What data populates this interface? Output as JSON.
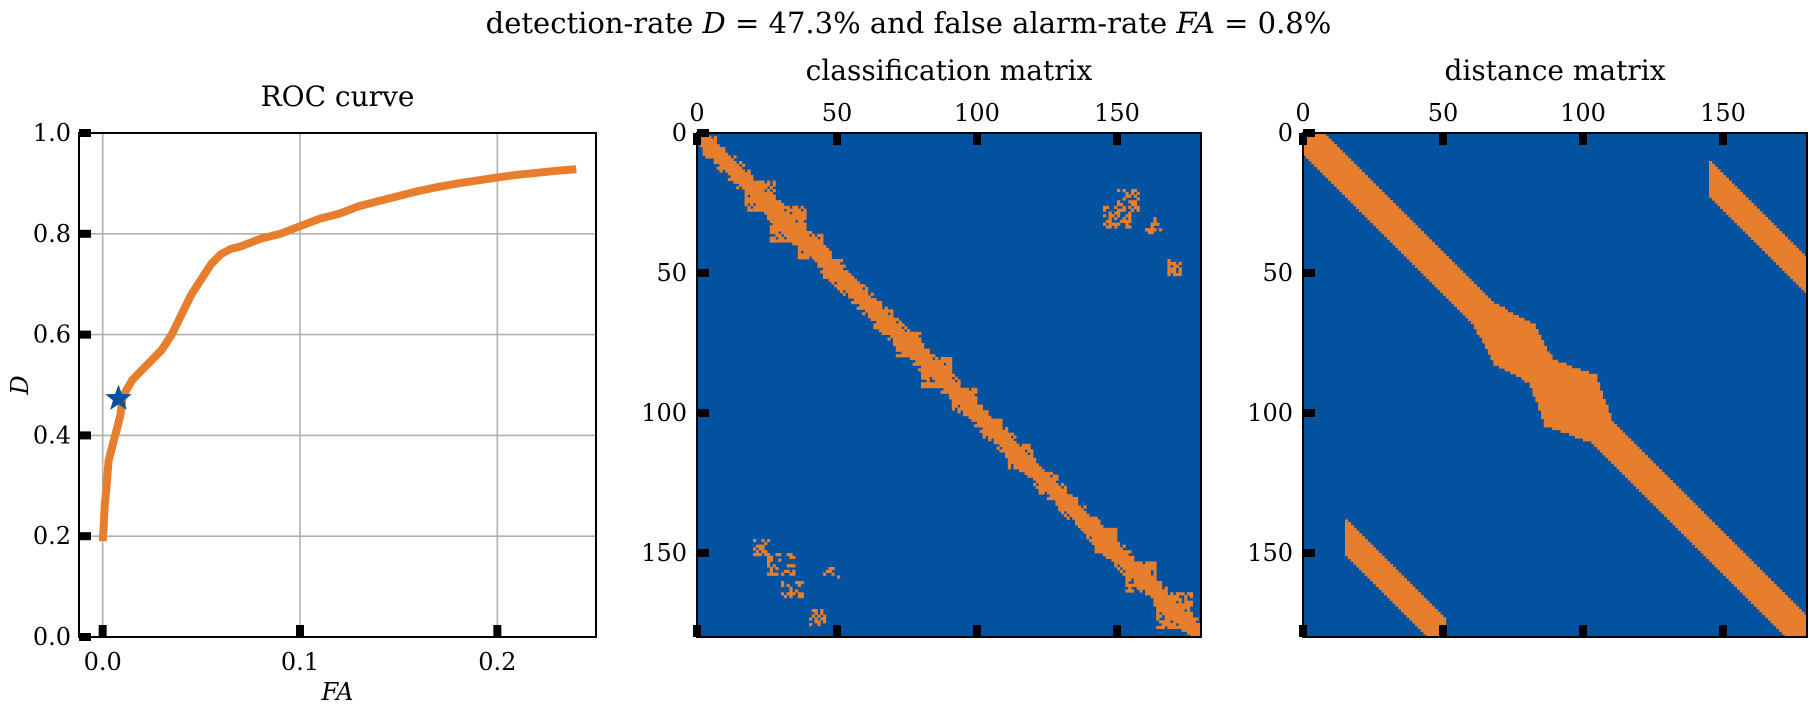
{
  "suptitle": {
    "prefix": "detection-rate ",
    "d_symbol": "D",
    "d_rest": " = 47.3% and false alarm-rate ",
    "fa_symbol": "FA",
    "fa_rest": " = 0.8%"
  },
  "colors": {
    "orange": "#e67e2e",
    "blue": "#0352a0",
    "grid": "#b0b0b0",
    "axis": "#000000"
  },
  "chart_data": [
    {
      "type": "line",
      "title": "ROC curve",
      "xlabel": "FA",
      "ylabel": "D",
      "xlim": [
        -0.012,
        0.25
      ],
      "ylim": [
        0.0,
        1.0
      ],
      "xticks": [
        0.0,
        0.1,
        0.2
      ],
      "xtick_labels": [
        "0.0",
        "0.1",
        "0.2"
      ],
      "yticks": [
        0.0,
        0.2,
        0.4,
        0.6,
        0.8,
        1.0
      ],
      "ytick_labels": [
        "0.0",
        "0.2",
        "0.4",
        "0.6",
        "0.8",
        "1.0"
      ],
      "grid": true,
      "series": [
        {
          "color": "#e67e2e",
          "x": [
            0.0,
            0.0005,
            0.001,
            0.002,
            0.003,
            0.005,
            0.007,
            0.009,
            0.01,
            0.012,
            0.015,
            0.02,
            0.025,
            0.03,
            0.035,
            0.04,
            0.045,
            0.05,
            0.055,
            0.06,
            0.065,
            0.07,
            0.08,
            0.09,
            0.1,
            0.11,
            0.12,
            0.13,
            0.14,
            0.15,
            0.16,
            0.17,
            0.18,
            0.19,
            0.2,
            0.21,
            0.22,
            0.23,
            0.24
          ],
          "y": [
            0.19,
            0.22,
            0.26,
            0.3,
            0.35,
            0.38,
            0.41,
            0.44,
            0.473,
            0.49,
            0.51,
            0.53,
            0.55,
            0.57,
            0.6,
            0.64,
            0.68,
            0.71,
            0.74,
            0.76,
            0.77,
            0.775,
            0.79,
            0.8,
            0.815,
            0.83,
            0.84,
            0.855,
            0.865,
            0.875,
            0.885,
            0.893,
            0.9,
            0.906,
            0.912,
            0.917,
            0.921,
            0.925,
            0.928
          ]
        }
      ],
      "marker": {
        "x": 0.008,
        "y": 0.473,
        "shape": "star",
        "color": "#0352a0"
      }
    },
    {
      "type": "heatmap",
      "title": "classification matrix",
      "xticks": [
        0,
        50,
        100,
        150
      ],
      "xtick_labels": [
        "0",
        "50",
        "100",
        "150"
      ],
      "yticks": [
        0,
        50,
        100,
        150
      ],
      "ytick_labels": [
        "0",
        "50",
        "100",
        "150"
      ],
      "size": 180,
      "values": "binary (orange = 1, blue = 0)",
      "band": {
        "half_width": 4,
        "jitter": true
      },
      "blocks": [
        [
          22,
          22,
          10
        ],
        [
          32,
          32,
          12
        ],
        [
          40,
          40,
          8
        ],
        [
          48,
          48,
          6
        ],
        [
          66,
          66,
          7
        ],
        [
          75,
          75,
          9
        ],
        [
          85,
          85,
          10
        ],
        [
          95,
          95,
          8
        ],
        [
          105,
          105,
          6
        ],
        [
          115,
          115,
          8
        ],
        [
          125,
          125,
          6
        ],
        [
          145,
          145,
          8
        ],
        [
          158,
          158,
          10
        ],
        [
          170,
          170,
          12
        ]
      ],
      "patches": [
        [
          145,
          25,
          10,
          10
        ],
        [
          150,
          20,
          8,
          8
        ],
        [
          160,
          30,
          6,
          6
        ],
        [
          168,
          45,
          5,
          6
        ],
        [
          25,
          150,
          10,
          8
        ],
        [
          30,
          160,
          8,
          6
        ],
        [
          40,
          170,
          6,
          6
        ],
        [
          45,
          155,
          6,
          4
        ],
        [
          20,
          145,
          6,
          6
        ]
      ]
    },
    {
      "type": "heatmap",
      "title": "distance matrix",
      "xticks": [
        0,
        50,
        100,
        150
      ],
      "xtick_labels": [
        "0",
        "50",
        "100",
        "150"
      ],
      "yticks": [
        0,
        50,
        100,
        150
      ],
      "ytick_labels": [
        "0",
        "50",
        "100",
        "150"
      ],
      "size": 180,
      "values": "binary (orange = 1, blue = 0)",
      "main_band": {
        "half_width": 7,
        "bulges": [
          [
            75,
            14
          ],
          [
            95,
            18
          ]
        ]
      },
      "off_bands": [
        {
          "x_start": 15,
          "x_end": 50,
          "offset": -129,
          "half_width": 6
        },
        {
          "x_start": 145,
          "x_end": 180,
          "offset": 129,
          "half_width": 6
        }
      ]
    }
  ]
}
